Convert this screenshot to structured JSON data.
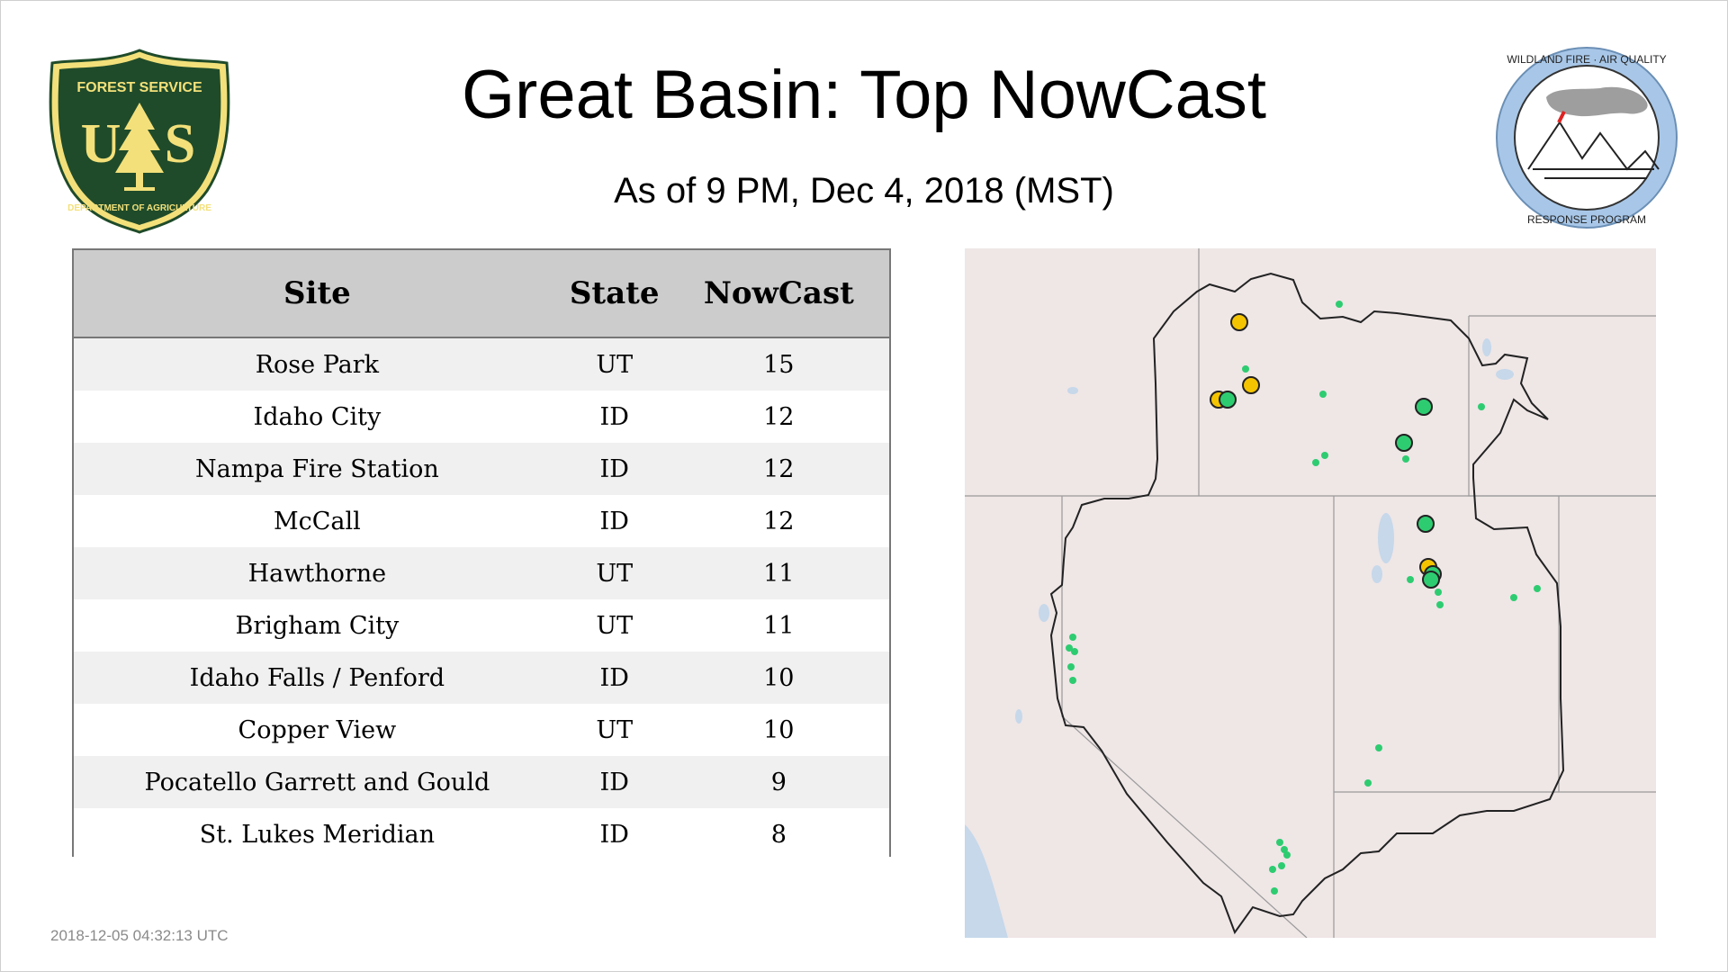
{
  "header": {
    "title": "Great Basin: Top NowCast",
    "subtitle": "As of  9 PM, Dec  4, 2018 (MST)"
  },
  "logos": {
    "forest_service": {
      "top_text": "FOREST SERVICE",
      "letters": "U S",
      "bottom_text": "DEPARTMENT OF AGRICULTURE",
      "colors": {
        "green": "#1f4b2a",
        "gold": "#f3e07a"
      }
    },
    "wildland_fire": {
      "top_text": "WILDLAND FIRE · AIR QUALITY",
      "bottom_text": "RESPONSE PROGRAM",
      "ring_color": "#a8c7e8"
    }
  },
  "table": {
    "columns": [
      "Site",
      "State",
      "NowCast"
    ],
    "rows": [
      {
        "site": "Rose Park",
        "state": "UT",
        "nowcast": "15"
      },
      {
        "site": "Idaho City",
        "state": "ID",
        "nowcast": "12"
      },
      {
        "site": "Nampa Fire Station",
        "state": "ID",
        "nowcast": "12"
      },
      {
        "site": "McCall",
        "state": "ID",
        "nowcast": "12"
      },
      {
        "site": "Hawthorne",
        "state": "UT",
        "nowcast": "11"
      },
      {
        "site": "Brigham City",
        "state": "UT",
        "nowcast": "11"
      },
      {
        "site": "Idaho Falls / Penford",
        "state": "ID",
        "nowcast": "10"
      },
      {
        "site": "Copper View",
        "state": "UT",
        "nowcast": "10"
      },
      {
        "site": "Pocatello Garrett and Gould",
        "state": "ID",
        "nowcast": "9"
      },
      {
        "site": "St. Lukes Meridian",
        "state": "ID",
        "nowcast": "8"
      }
    ]
  },
  "map": {
    "colors": {
      "background": "#efe6e6",
      "boundary": "#222222",
      "state_lines": "#9a9a9a",
      "water": "#c6d8ea",
      "good": "#2ecc71",
      "moderate": "#f5c400"
    }
  },
  "footer": {
    "timestamp": "2018-12-05 04:32:13 UTC"
  }
}
